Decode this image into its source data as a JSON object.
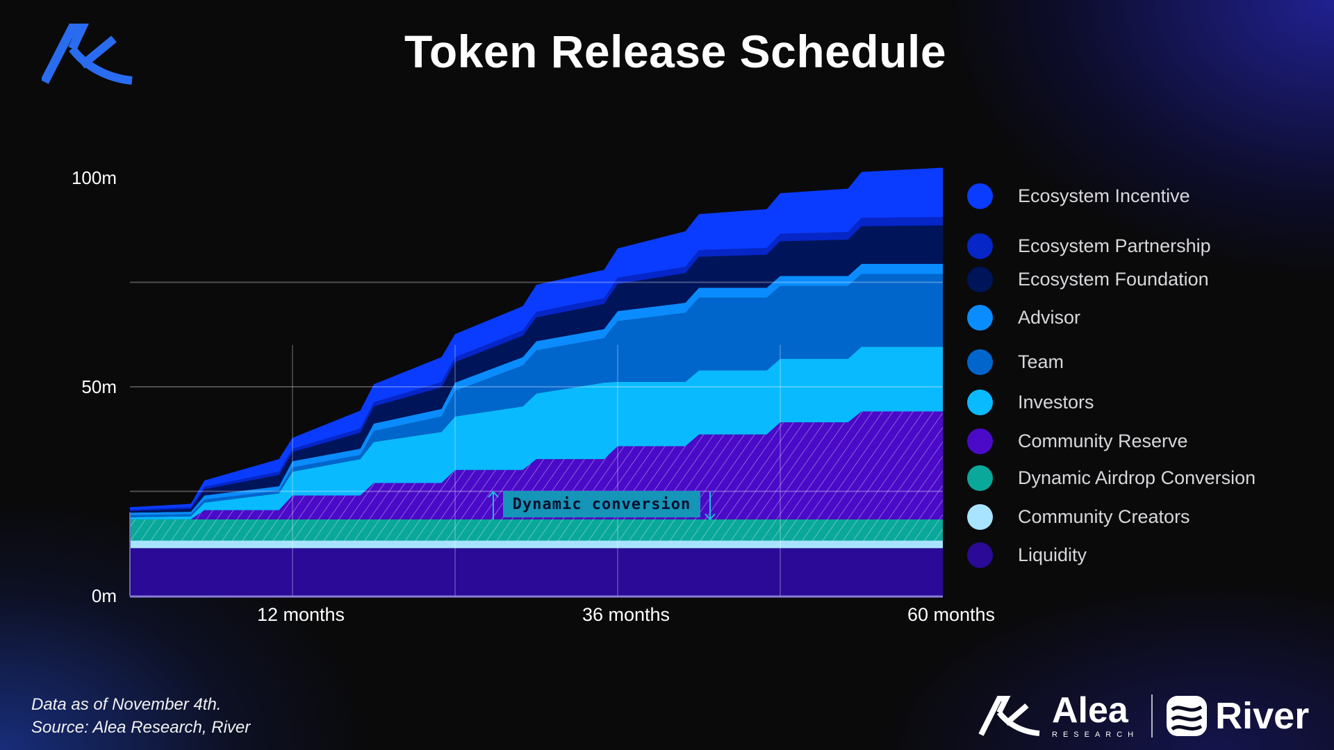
{
  "title": "Token Release Schedule",
  "footer": {
    "line1": "Data as of November 4th.",
    "line2": "Source: Alea Research, River"
  },
  "brand": {
    "alea": "Alea",
    "alea_sub": "RESEARCH",
    "river": "River"
  },
  "annotation": "Dynamic conversion",
  "chart_data": {
    "type": "area",
    "stacked": true,
    "title": "Token Release Schedule",
    "xlabel": "",
    "ylabel": "",
    "x_unit": "months",
    "xlim": [
      0,
      60
    ],
    "ylim": [
      0,
      105
    ],
    "yticks": [
      {
        "value": 0,
        "label": "0m"
      },
      {
        "value": 50,
        "label": "50m"
      },
      {
        "value": 100,
        "label": "100m"
      }
    ],
    "xticks": [
      {
        "value": 12,
        "label": "12 months"
      },
      {
        "value": 36,
        "label": "36 months"
      },
      {
        "value": 60,
        "label": "60 months"
      }
    ],
    "grid": true,
    "legend_position": "right",
    "x": [
      0,
      4.5,
      5.5,
      11,
      12,
      17,
      18,
      23,
      24,
      29,
      30,
      35,
      36,
      41,
      42,
      47,
      48,
      53,
      54,
      60
    ],
    "series": [
      {
        "name": "Liquidity",
        "color": "#2a0a96",
        "hatched": false,
        "values": [
          11.4,
          11.4,
          11.4,
          11.4,
          11.4,
          11.4,
          11.4,
          11.4,
          11.4,
          11.4,
          11.4,
          11.4,
          11.4,
          11.4,
          11.4,
          11.4,
          11.4,
          11.4,
          11.4,
          11.4
        ]
      },
      {
        "name": "Community Creators",
        "color": "#a8e4ff",
        "hatched": false,
        "values": [
          1.8,
          1.8,
          1.8,
          1.8,
          1.8,
          1.8,
          1.8,
          1.8,
          1.8,
          1.8,
          1.8,
          1.8,
          1.8,
          1.8,
          1.8,
          1.8,
          1.8,
          1.8,
          1.8,
          1.8
        ]
      },
      {
        "name": "Dynamic Airdrop Conversion",
        "color": "#0aa89a",
        "hatched": true,
        "values": [
          5.1,
          5.1,
          5.1,
          5.1,
          5.1,
          5.1,
          5.1,
          5.1,
          5.1,
          5.1,
          5.1,
          5.1,
          5.1,
          5.1,
          5.1,
          5.1,
          5.1,
          5.1,
          5.1,
          5.1
        ]
      },
      {
        "name": "Community Reserve",
        "color": "#4a0ac8",
        "hatched": true,
        "values": [
          0,
          0,
          2.2,
          2.2,
          5.7,
          5.7,
          8.7,
          8.7,
          11.8,
          11.8,
          14.4,
          14.4,
          17.5,
          17.5,
          20.3,
          20.3,
          23.2,
          23.2,
          25.8,
          25.8
        ]
      },
      {
        "name": "Investors",
        "color": "#0abaff",
        "hatched": false,
        "values": [
          0.5,
          0.7,
          1.8,
          4.0,
          5.7,
          8.7,
          9.8,
          12.2,
          12.8,
          15.2,
          15.7,
          18.3,
          15.4,
          15.4,
          15.3,
          15.3,
          15.2,
          15.2,
          15.5,
          15.5
        ]
      },
      {
        "name": "Team",
        "color": "#0066cc",
        "hatched": false,
        "values": [
          0.5,
          0.5,
          0.7,
          0.7,
          1.0,
          1.0,
          2.6,
          3.7,
          6.1,
          9.8,
          10.3,
          10.6,
          14.5,
          16.5,
          17.4,
          17.4,
          17.4,
          17.4,
          17.4,
          17.4
        ]
      },
      {
        "name": "Advisor",
        "color": "#0a8cff",
        "hatched": false,
        "values": [
          0.6,
          0.6,
          1.0,
          1.0,
          1.5,
          1.5,
          1.8,
          1.8,
          2,
          2,
          2.2,
          2.2,
          2.4,
          2.4,
          2.4,
          2.4,
          2.4,
          2.4,
          2.4,
          2.4
        ]
      },
      {
        "name": "Ecosystem Foundation",
        "color": "#00145a",
        "hatched": false,
        "values": [
          0.4,
          0.7,
          1.5,
          2.7,
          2.2,
          3.8,
          4.1,
          5.2,
          4.9,
          5.1,
          5.7,
          6,
          6.5,
          7.1,
          7.4,
          7.9,
          8.3,
          8.7,
          9,
          9.2
        ]
      },
      {
        "name": "Ecosystem Partnership",
        "color": "#0626c8",
        "hatched": false,
        "values": [
          0.3,
          0.4,
          0.6,
          0.8,
          0.8,
          1,
          1,
          1.2,
          1.2,
          1.3,
          1.3,
          1.4,
          1.5,
          1.5,
          1.6,
          1.6,
          1.8,
          1.8,
          2,
          2
        ]
      },
      {
        "name": "Ecosystem Incentive",
        "color": "#0a3cff",
        "hatched": false,
        "values": [
          0.6,
          0.8,
          1.5,
          3,
          2.6,
          4.3,
          4.3,
          6,
          5.5,
          5.8,
          6.5,
          6.8,
          7,
          8.5,
          8.6,
          9.3,
          9.7,
          10.4,
          11,
          11.8
        ]
      }
    ],
    "legend_order": [
      "Ecosystem Incentive",
      "Ecosystem Partnership",
      "Ecosystem Foundation",
      "Advisor",
      "Team",
      "Investors",
      "Community Reserve",
      "Dynamic Airdrop Conversion",
      "Community Creators",
      "Liquidity"
    ]
  }
}
